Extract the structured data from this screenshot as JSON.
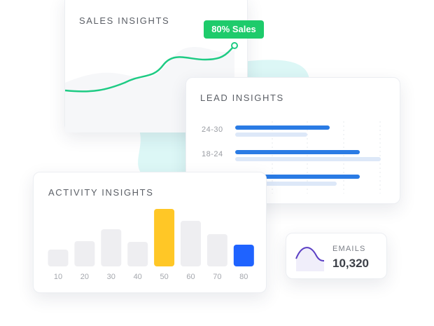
{
  "sales": {
    "title": "SALES INSIGHTS",
    "badge": "80% Sales",
    "line_color": "#1ecb84",
    "badge_color": "#1ecb6b"
  },
  "lead": {
    "title": "LEAD INSIGHTS",
    "labels": [
      "24-30",
      "18-24"
    ]
  },
  "emails": {
    "label": "EMAILS",
    "value": "10,320"
  },
  "colors": {
    "blob": "#dcf7f6",
    "bar_gray": "#eeeef1",
    "bar_yellow": "#ffc726",
    "bar_blue": "#1f63ff",
    "lead_blue": "#2a7be4",
    "lead_light": "#dde8f8"
  },
  "chart_data": [
    {
      "type": "bar",
      "title": "ACTIVITY INSIGHTS",
      "categories": [
        "10",
        "20",
        "30",
        "40",
        "50",
        "60",
        "70",
        "80"
      ],
      "values": [
        24,
        36,
        53,
        35,
        82,
        65,
        46,
        31
      ],
      "highlight": {
        "50": "yellow",
        "80": "blue"
      }
    },
    {
      "type": "bar",
      "orientation": "horizontal",
      "title": "LEAD INSIGHTS",
      "categories": [
        "24-30",
        "18-24",
        ""
      ],
      "series": [
        {
          "values": [
            135,
            178,
            178
          ]
        },
        {
          "values": [
            103,
            208,
            145
          ]
        }
      ]
    },
    {
      "type": "line",
      "title": "SALES INSIGHTS",
      "annotation": "80% Sales"
    }
  ]
}
